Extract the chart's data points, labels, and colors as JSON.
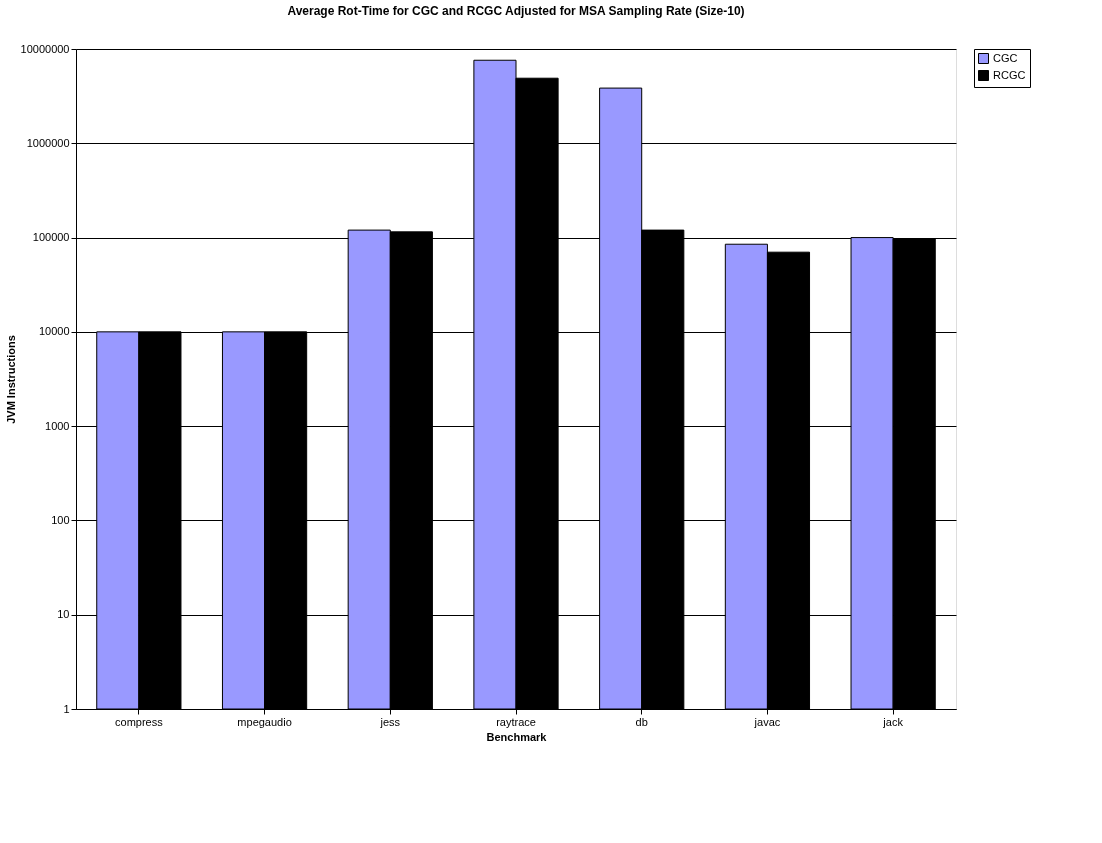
{
  "chart_data": {
    "type": "bar",
    "title": "Average Rot-Time for CGC and RCGC Adjusted for MSA Sampling Rate (Size-10)",
    "xlabel": "Benchmark",
    "ylabel": "JVM Instructions",
    "categories": [
      "compress",
      "mpegaudio",
      "jess",
      "raytrace",
      "db",
      "javac",
      "jack"
    ],
    "series": [
      {
        "name": "CGC",
        "color": "#9999ff",
        "values": [
          10000,
          10000,
          120000,
          7600000,
          3850000,
          85000,
          100000
        ]
      },
      {
        "name": "RCGC",
        "color": "#000000",
        "values": [
          10000,
          10000,
          115000,
          4900000,
          120000,
          70000,
          97000
        ]
      }
    ],
    "log": "y",
    "ylim": [
      1,
      10000000
    ],
    "yticks": [
      1,
      10,
      100,
      1000,
      10000,
      100000,
      1000000,
      10000000
    ],
    "grid": "y",
    "legend": "right"
  }
}
